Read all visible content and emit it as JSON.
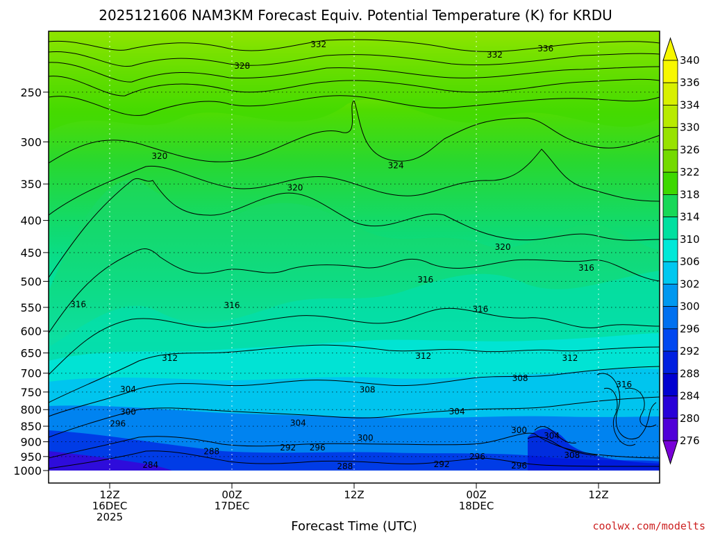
{
  "chart_data": {
    "type": "heatmap",
    "title": "2025121606 NAM3KM Forecast Equiv. Potential Temperature (K) for KRDU",
    "xlabel": "Forecast Time (UTC)",
    "ylabel": "",
    "credit": "coolwx.com/modelts",
    "y_ticks": [
      250,
      300,
      350,
      400,
      450,
      500,
      550,
      600,
      650,
      700,
      750,
      800,
      850,
      900,
      950,
      1000
    ],
    "y_range_hpa": [
      1000,
      200
    ],
    "y_scale": "log-pressure",
    "x_ticks": [
      {
        "line1": "12Z",
        "line2": "16DEC",
        "line3": "2025",
        "hour": 6
      },
      {
        "line1": "00Z",
        "line2": "17DEC",
        "line3": "",
        "hour": 18
      },
      {
        "line1": "12Z",
        "line2": "",
        "line3": "",
        "hour": 30
      },
      {
        "line1": "00Z",
        "line2": "18DEC",
        "line3": "",
        "hour": 42
      },
      {
        "line1": "12Z",
        "line2": "",
        "line3": "",
        "hour": 54
      }
    ],
    "x_range_hours": [
      0,
      60
    ],
    "colorbar": {
      "labels": [
        340,
        336,
        334,
        330,
        326,
        322,
        318,
        314,
        310,
        306,
        302,
        300,
        296,
        292,
        288,
        284,
        280,
        276
      ],
      "colors": [
        "#f7f700",
        "#d8f000",
        "#b8ea00",
        "#98e200",
        "#74da00",
        "#3ed800",
        "#18d858",
        "#00e0a0",
        "#00e8d8",
        "#00c8f0",
        "#0098f0",
        "#0070f0",
        "#0048f0",
        "#0020e0",
        "#0000d0",
        "#2800d8",
        "#5000d8",
        "#7800d8"
      ]
    },
    "surface_color": "#a05028",
    "grid": true,
    "contour_labels": [
      {
        "text": "332",
        "hour": 26.5,
        "p": 210
      },
      {
        "text": "328",
        "hour": 19.0,
        "p": 227
      },
      {
        "text": "332",
        "hour": 43.8,
        "p": 218
      },
      {
        "text": "336",
        "hour": 48.8,
        "p": 213
      },
      {
        "text": "320",
        "hour": 10.9,
        "p": 316
      },
      {
        "text": "324",
        "hour": 34.1,
        "p": 327
      },
      {
        "text": "320",
        "hour": 24.2,
        "p": 355
      },
      {
        "text": "320",
        "hour": 44.6,
        "p": 441
      },
      {
        "text": "316",
        "hour": 52.8,
        "p": 476
      },
      {
        "text": "316",
        "hour": 37.0,
        "p": 497
      },
      {
        "text": "316",
        "hour": 2.9,
        "p": 544
      },
      {
        "text": "316",
        "hour": 18.0,
        "p": 546
      },
      {
        "text": "316",
        "hour": 42.4,
        "p": 554
      },
      {
        "text": "312",
        "hour": 11.9,
        "p": 662
      },
      {
        "text": "312",
        "hour": 36.8,
        "p": 657
      },
      {
        "text": "312",
        "hour": 51.2,
        "p": 662
      },
      {
        "text": "308",
        "hour": 46.3,
        "p": 713
      },
      {
        "text": "308",
        "hour": 31.3,
        "p": 744
      },
      {
        "text": "316",
        "hour": 56.5,
        "p": 730
      },
      {
        "text": "304",
        "hour": 7.8,
        "p": 743
      },
      {
        "text": "300",
        "hour": 7.8,
        "p": 807
      },
      {
        "text": "304",
        "hour": 40.1,
        "p": 806
      },
      {
        "text": "304",
        "hour": 24.5,
        "p": 840
      },
      {
        "text": "296",
        "hour": 6.8,
        "p": 842
      },
      {
        "text": "300",
        "hour": 46.2,
        "p": 863
      },
      {
        "text": "304",
        "hour": 49.4,
        "p": 881
      },
      {
        "text": "300",
        "hour": 31.1,
        "p": 887
      },
      {
        "text": "292",
        "hour": 23.5,
        "p": 920
      },
      {
        "text": "296",
        "hour": 26.4,
        "p": 920
      },
      {
        "text": "288",
        "hour": 16.0,
        "p": 932
      },
      {
        "text": "308",
        "hour": 51.4,
        "p": 945
      },
      {
        "text": "296",
        "hour": 42.1,
        "p": 951
      },
      {
        "text": "292",
        "hour": 38.6,
        "p": 977
      },
      {
        "text": "296",
        "hour": 46.2,
        "p": 982
      },
      {
        "text": "284",
        "hour": 10.0,
        "p": 980
      },
      {
        "text": "288",
        "hour": 29.1,
        "p": 985
      }
    ]
  }
}
